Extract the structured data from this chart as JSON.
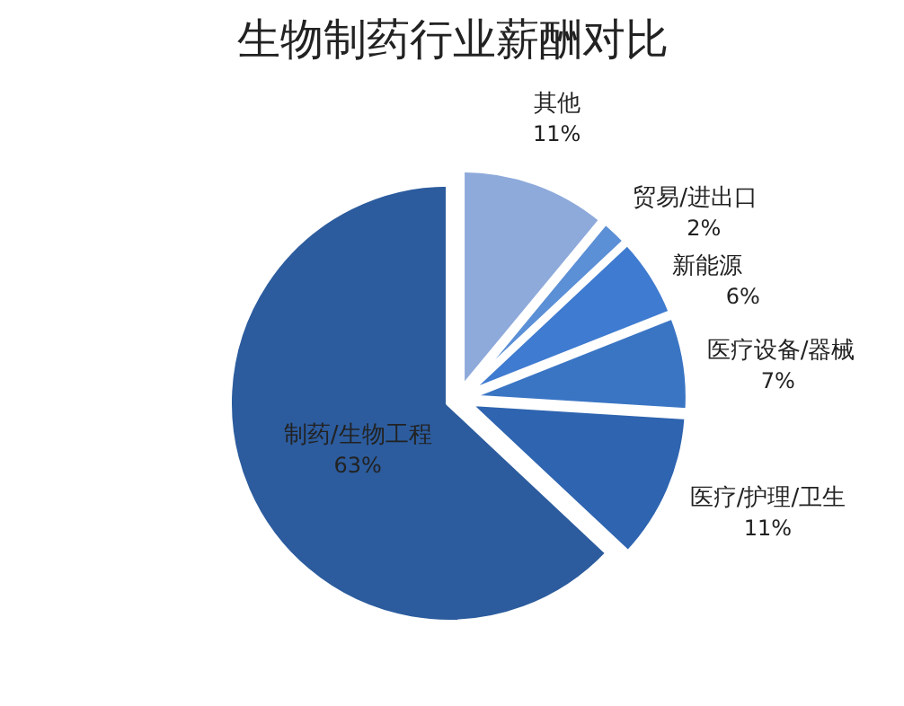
{
  "chart_data": {
    "type": "pie",
    "title": "生物制药行业薪酬对比",
    "categories": [
      "其他",
      "贸易/进出口",
      "新能源",
      "医疗设备/器械",
      "医疗/护理/卫生",
      "制药/生物工程"
    ],
    "values": [
      11,
      2,
      6,
      7,
      11,
      63
    ],
    "value_labels": [
      "11%",
      "2%",
      "6%",
      "7%",
      "11%",
      "63%"
    ],
    "colors": [
      "#8eaadb",
      "#5b8fd6",
      "#3f7bd0",
      "#3a75c4",
      "#2e64b0",
      "#2c5c9e"
    ]
  }
}
